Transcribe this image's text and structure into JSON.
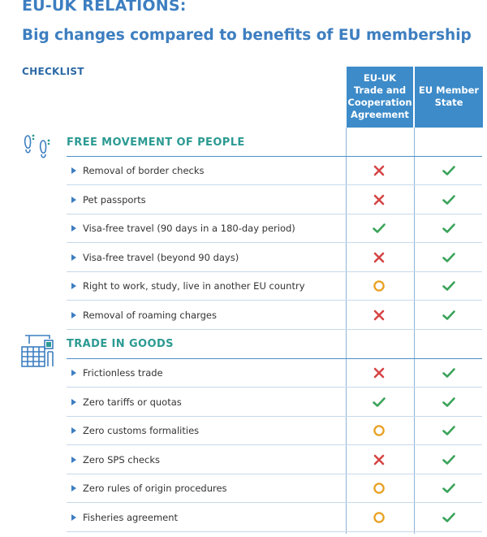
{
  "header": {
    "title": "EU-UK RELATIONS:",
    "subtitle": "Big changes compared to benefits of EU membership",
    "checklist_label": "CHECKLIST"
  },
  "columns": [
    "EU-UK\nTrade and\nCooperation\nAgreement",
    "EU Member\nState"
  ],
  "colors": {
    "title": "#3d7ec0",
    "section": "#2b9a92",
    "header_bg": "#3d8bc9",
    "check": "#3aa35a",
    "cross": "#d64545",
    "circle": "#e8a020"
  },
  "sections": [
    {
      "title": "FREE MOVEMENT OF PEOPLE",
      "icon": "footprints-icon",
      "rows": [
        {
          "label": "Removal of border checks",
          "tca": "cross",
          "eu": "check"
        },
        {
          "label": "Pet passports",
          "tca": "cross",
          "eu": "check"
        },
        {
          "label": "Visa-free travel (90 days in a 180-day period)",
          "tca": "check",
          "eu": "check"
        },
        {
          "label": "Visa-free travel (beyond 90 days)",
          "tca": "cross",
          "eu": "check"
        },
        {
          "label": "Right to work, study, live in another EU country",
          "tca": "circle",
          "eu": "check"
        },
        {
          "label": "Removal of roaming charges",
          "tca": "cross",
          "eu": "check"
        }
      ]
    },
    {
      "title": "TRADE IN GOODS",
      "icon": "factory-icon",
      "rows": [
        {
          "label": "Frictionless trade",
          "tca": "cross",
          "eu": "check"
        },
        {
          "label": "Zero tariffs or quotas",
          "tca": "check",
          "eu": "check"
        },
        {
          "label": "Zero customs formalities",
          "tca": "circle",
          "eu": "check"
        },
        {
          "label": "Zero SPS checks",
          "tca": "cross",
          "eu": "check"
        },
        {
          "label": "Zero rules of origin procedures",
          "tca": "circle",
          "eu": "check"
        },
        {
          "label": "Fisheries agreement",
          "tca": "circle",
          "eu": "check"
        }
      ]
    }
  ]
}
